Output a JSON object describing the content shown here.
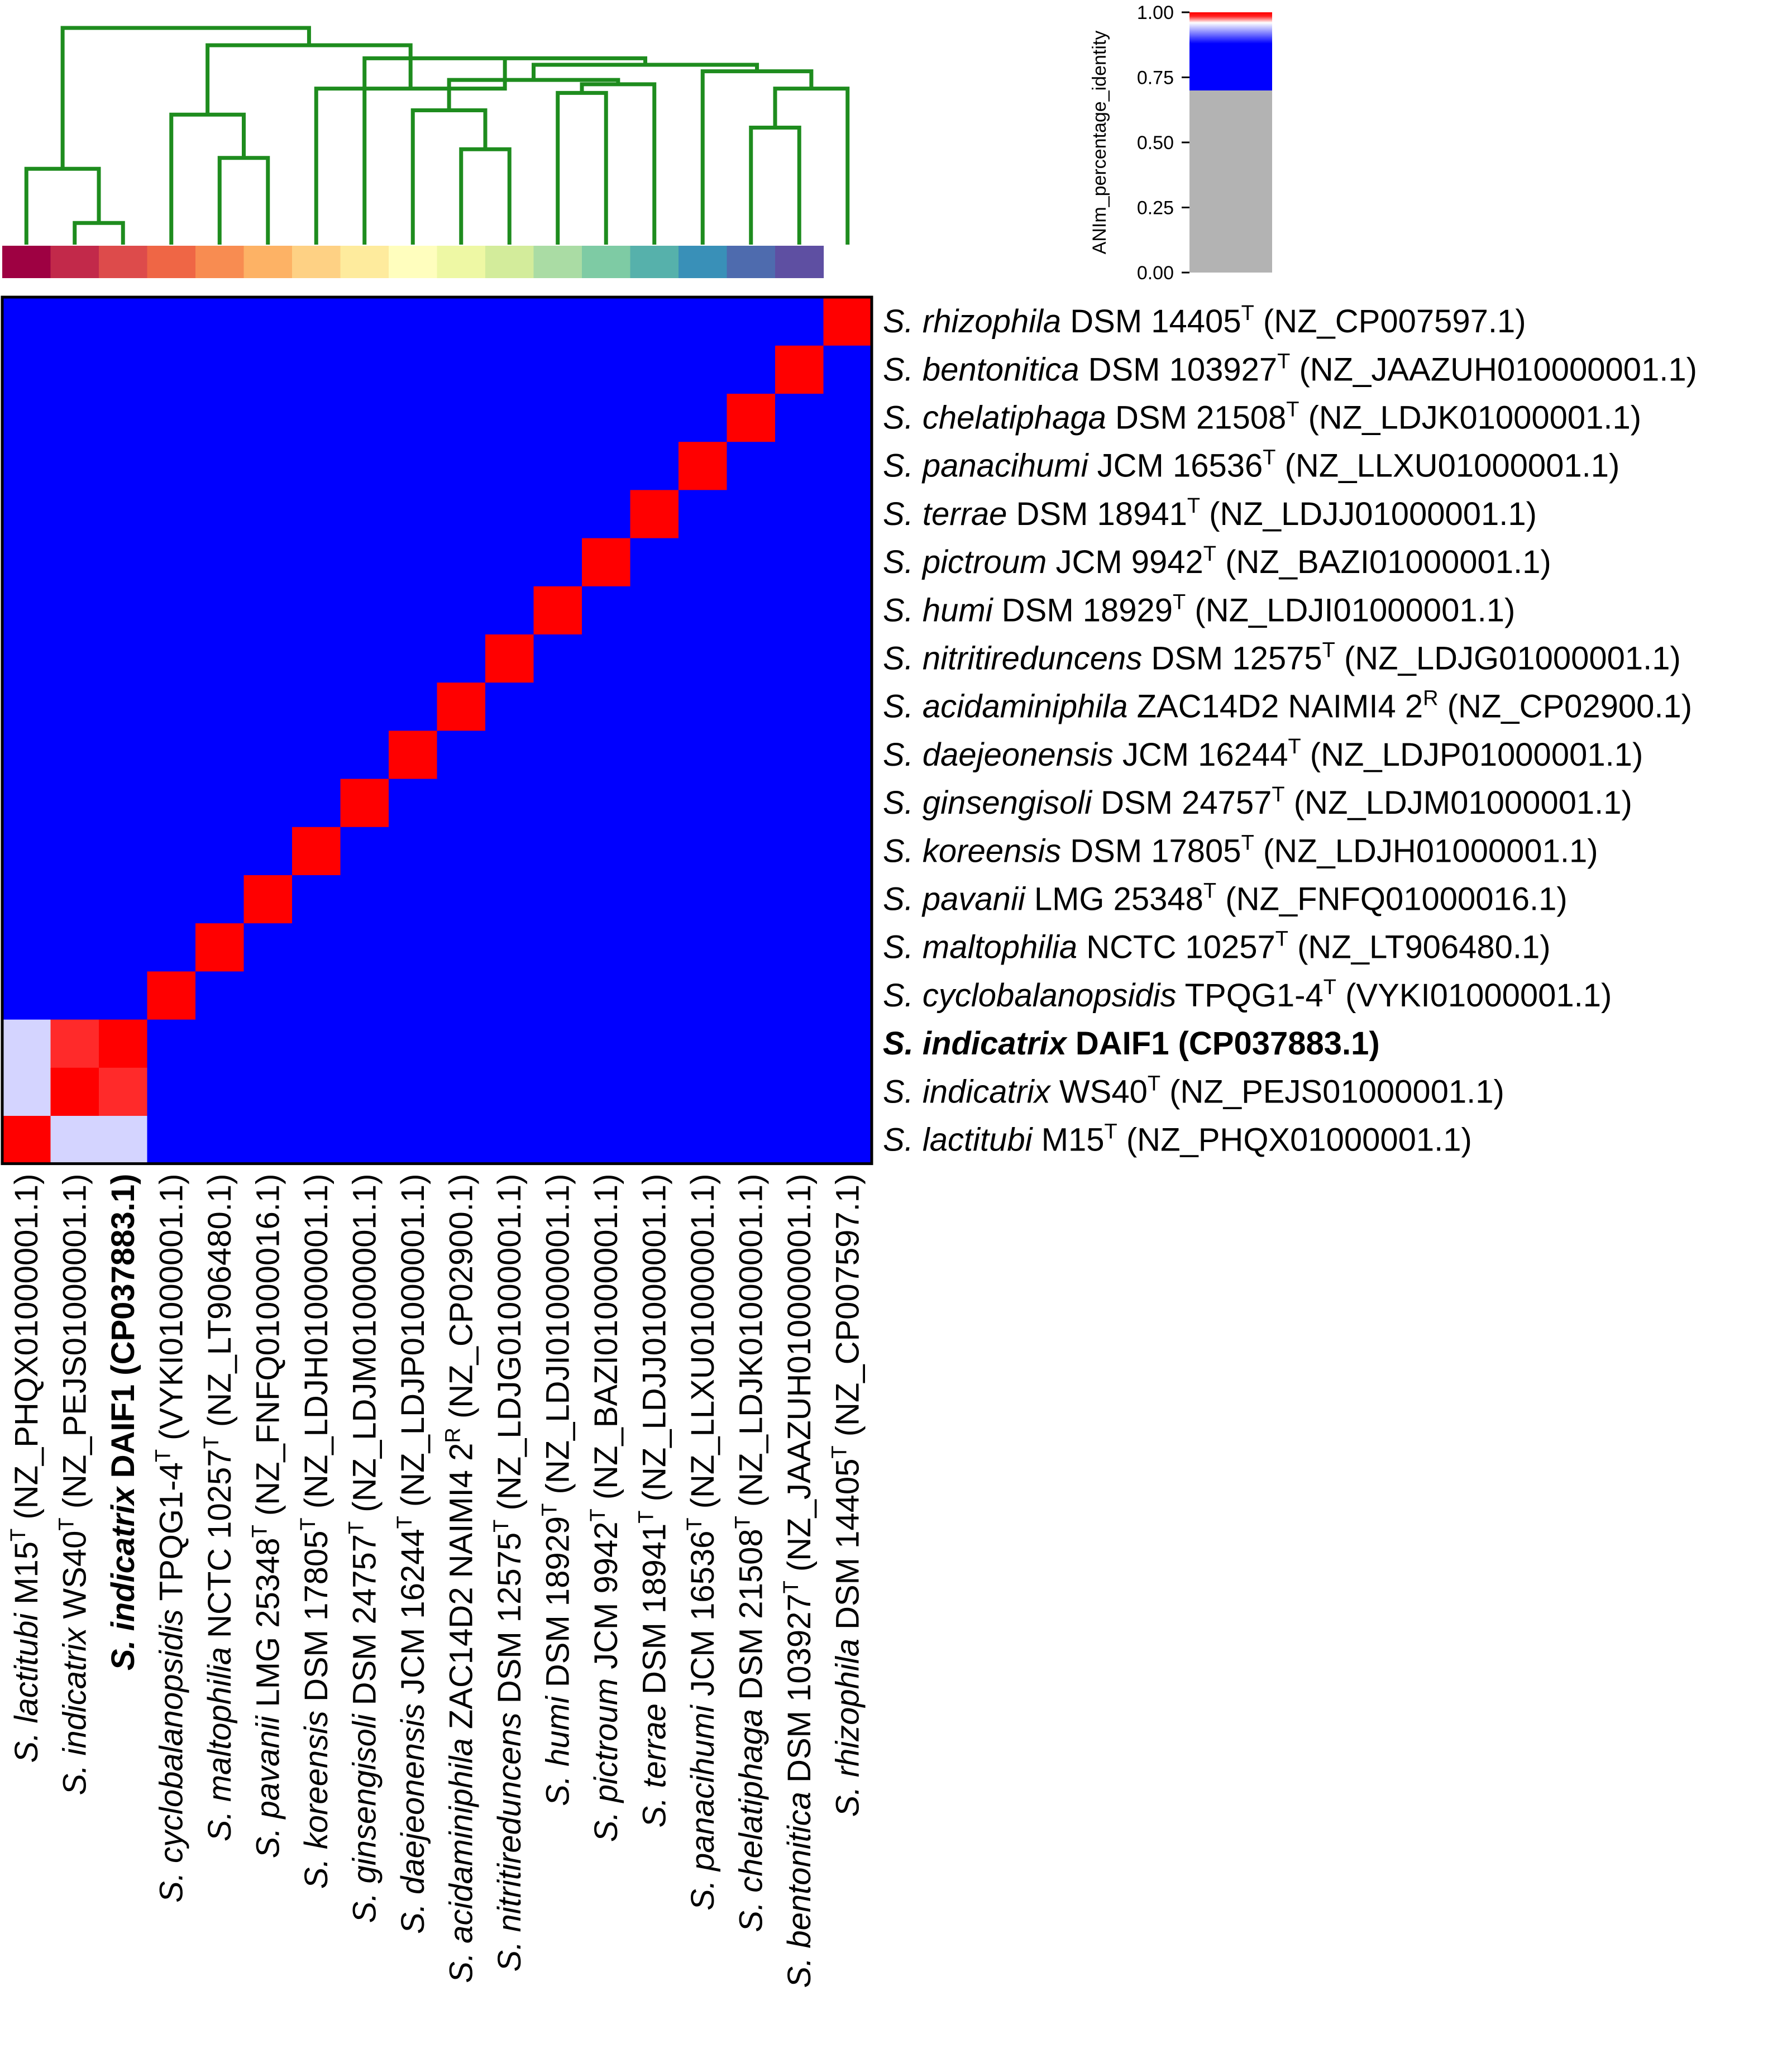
{
  "chart_data": {
    "type": "heatmap",
    "colorbar": {
      "label": "ANIm_percentage_identity",
      "ticks": [
        "0.00",
        "0.25",
        "0.50",
        "0.75",
        "1.00"
      ],
      "tick_values": [
        0.0,
        0.25,
        0.5,
        0.75,
        1.0
      ],
      "range": [
        0,
        1
      ]
    },
    "colors": {
      "background_cell": "#0000ff",
      "identity_cell": "#ff0000",
      "low_value": "#b3b3b3",
      "highlight_label": "#ff0000",
      "dendrogram": "#1e8c1e",
      "frame": "#000000"
    },
    "legend_strip_colors": [
      "#9e0142",
      "#c2294a",
      "#dd4b4b",
      "#ef6645",
      "#f88c51",
      "#fdb265",
      "#fed184",
      "#feeb9d",
      "#fffebe",
      "#eef8a4",
      "#d3ec9b",
      "#aadca4",
      "#7ecba4",
      "#56b1ab",
      "#3990b8",
      "#4e6bae",
      "#5e4fa2"
    ],
    "genomes": [
      {
        "species": "S. lactitubi",
        "strain": "M15",
        "sup": "T",
        "accession": "(NZ_PHQX01000001.1)",
        "highlight": false
      },
      {
        "species": "S. indicatrix",
        "strain": "WS40",
        "sup": "T",
        "accession": "(NZ_PEJS01000001.1)",
        "highlight": false
      },
      {
        "species": "S. indicatrix",
        "strain": "DAIF1",
        "sup": "",
        "accession": "(CP037883.1)",
        "highlight": true
      },
      {
        "species": "S. cyclobalanopsidis",
        "strain": "TPQG1-4",
        "sup": "T",
        "accession": "(VYKI01000001.1)",
        "highlight": false
      },
      {
        "species": "S. maltophilia",
        "strain": "NCTC 10257",
        "sup": "T",
        "accession": "(NZ_LT906480.1)",
        "highlight": false
      },
      {
        "species": "S. pavanii",
        "strain": "LMG 25348",
        "sup": "T",
        "accession": "(NZ_FNFQ01000016.1)",
        "highlight": false
      },
      {
        "species": "S. koreensis",
        "strain": "DSM 17805",
        "sup": "T",
        "accession": "(NZ_LDJH01000001.1)",
        "highlight": false
      },
      {
        "species": "S. ginsengisoli",
        "strain": "DSM 24757",
        "sup": "T",
        "accession": "(NZ_LDJM01000001.1)",
        "highlight": false
      },
      {
        "species": "S. daejeonensis",
        "strain": "JCM 16244",
        "sup": "T",
        "accession": "(NZ_LDJP01000001.1)",
        "highlight": false
      },
      {
        "species": "S. acidaminiphila",
        "strain": "ZAC14D2 NAIMI4 2",
        "sup": "R",
        "accession": "(NZ_CP02900.1)",
        "highlight": false
      },
      {
        "species": "S. nitritireduncens",
        "strain": "DSM 12575",
        "sup": "T",
        "accession": "(NZ_LDJG01000001.1)",
        "highlight": false
      },
      {
        "species": "S. humi",
        "strain": "DSM 18929",
        "sup": "T",
        "accession": "(NZ_LDJI01000001.1)",
        "highlight": false
      },
      {
        "species": "S. pictroum",
        "strain": "JCM 9942",
        "sup": "T",
        "accession": "(NZ_BAZI01000001.1)",
        "highlight": false
      },
      {
        "species": "S. terrae",
        "strain": "DSM 18941",
        "sup": "T",
        "accession": "(NZ_LDJJ01000001.1)",
        "highlight": false
      },
      {
        "species": "S. panacihumi",
        "strain": "JCM 16536",
        "sup": "T",
        "accession": "(NZ_LLXU01000001.1)",
        "highlight": false
      },
      {
        "species": "S. chelatiphaga",
        "strain": "DSM 21508",
        "sup": "T",
        "accession": "(NZ_LDJK01000001.1)",
        "highlight": false
      },
      {
        "species": "S. bentonitica",
        "strain": "DSM 103927",
        "sup": "T",
        "accession": "(NZ_JAAZUH010000001.1)",
        "highlight": false
      },
      {
        "species": "S. rhizophila",
        "strain": "DSM 14405",
        "sup": "T",
        "accession": "(NZ_CP007597.1)",
        "highlight": false
      }
    ],
    "matrix_note_values": {
      "diagonal": 1.0,
      "default": 0.82,
      "pairs": [
        {
          "i": 0,
          "j": 1,
          "value": 0.95
        },
        {
          "i": 0,
          "j": 2,
          "value": 0.95
        },
        {
          "i": 1,
          "j": 2,
          "value": 0.985
        },
        {
          "i": 4,
          "j": 5,
          "value": 0.88
        },
        {
          "i": 9,
          "j": 10,
          "value": 0.86
        }
      ]
    },
    "dendrogram": [
      {
        "a": 1,
        "b": 2,
        "h": 0.1
      },
      {
        "a": 0,
        "b": 18,
        "h": 0.35
      },
      {
        "a": 4,
        "b": 5,
        "h": 0.4
      },
      {
        "a": 3,
        "b": 20,
        "h": 0.6
      },
      {
        "a": 9,
        "b": 10,
        "h": 0.44
      },
      {
        "a": 8,
        "b": 22,
        "h": 0.62
      },
      {
        "a": 11,
        "b": 12,
        "h": 0.7
      },
      {
        "a": 13,
        "b": 24,
        "h": 0.74
      },
      {
        "a": 23,
        "b": 25,
        "h": 0.76
      },
      {
        "a": 15,
        "b": 16,
        "h": 0.54
      },
      {
        "a": 17,
        "b": 27,
        "h": 0.72
      },
      {
        "a": 14,
        "b": 28,
        "h": 0.8
      },
      {
        "a": 26,
        "b": 29,
        "h": 0.83
      },
      {
        "a": 7,
        "b": 30,
        "h": 0.86
      },
      {
        "a": 6,
        "b": 31,
        "h": 0.72
      },
      {
        "a": 21,
        "b": 32,
        "h": 0.92
      },
      {
        "a": 19,
        "b": 33,
        "h": 1.0
      }
    ]
  }
}
